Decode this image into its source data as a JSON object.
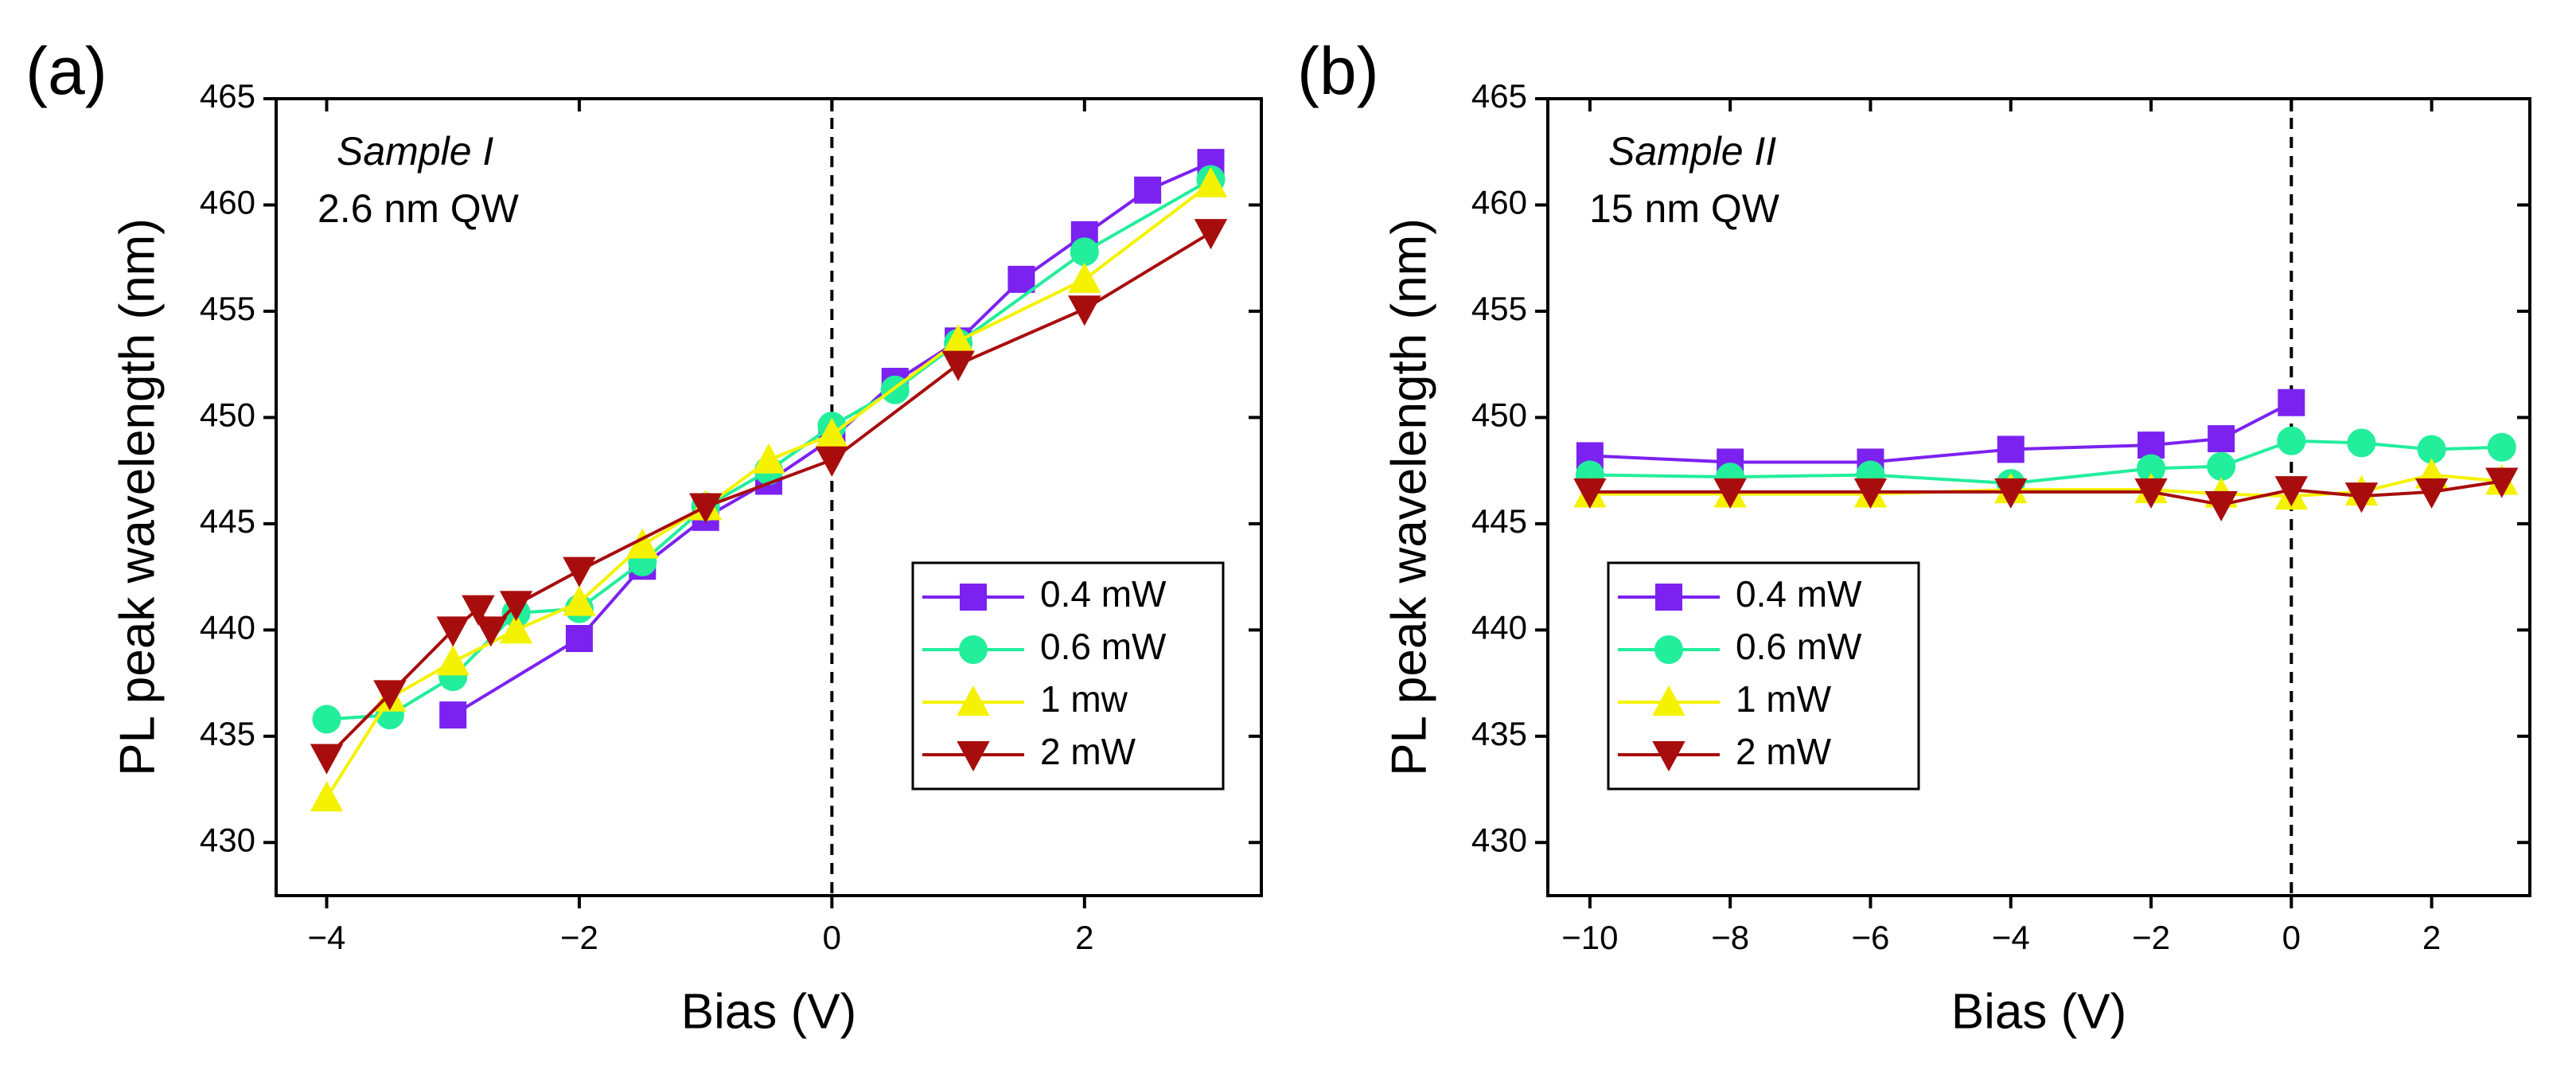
{
  "chart_data": [
    {
      "type": "line",
      "panel_label": "(a)",
      "annotations": [
        "Sample I",
        "2.6 nm QW"
      ],
      "x_label": "Bias (V)",
      "y_label": "PL peak wavelength (nm)",
      "xlim": [
        -4.4,
        3.4
      ],
      "ylim": [
        427.5,
        465
      ],
      "xticks": [
        {
          "value": -4,
          "label": "−4"
        },
        {
          "value": -2,
          "label": "−2"
        },
        0,
        2
      ],
      "yticks": [
        430,
        435,
        440,
        445,
        450,
        455,
        460,
        465
      ],
      "vline": 0,
      "legend": "lower right",
      "series": [
        {
          "name": "0.4 mW",
          "color": "#7b22f0",
          "marker": "square",
          "x": [
            -3,
            -2,
            -1.5,
            -1,
            -0.5,
            0,
            0.5,
            1,
            1.5,
            2,
            2.5,
            3
          ],
          "values": [
            436,
            439.6,
            443,
            445.3,
            447,
            449,
            451.7,
            453.6,
            456.5,
            458.6,
            460.7,
            462
          ]
        },
        {
          "name": "0.6 mW",
          "color": "#22ee9c",
          "marker": "circle",
          "x": [
            -4,
            -3.5,
            -3,
            -2.5,
            -2,
            -1.5,
            -1,
            -0.5,
            0,
            0.5,
            1,
            2,
            3
          ],
          "values": [
            435.8,
            436,
            437.8,
            440.8,
            441,
            443.2,
            445.8,
            447.5,
            449.6,
            451.3,
            453.5,
            457.8,
            461.2
          ]
        },
        {
          "name": "1 mw",
          "color": "#f5f200",
          "marker": "triangle-up",
          "x": [
            -4,
            -3.5,
            -3,
            -2.5,
            -2,
            -1.5,
            -1,
            -0.5,
            0,
            1,
            2,
            3
          ],
          "values": [
            432.1,
            436.8,
            438.5,
            440,
            441.3,
            444,
            445.8,
            448,
            449.2,
            453.6,
            456.5,
            461
          ]
        },
        {
          "name": "2 mW",
          "color": "#a80d0d",
          "marker": "triangle-down",
          "x": [
            -4,
            -3.5,
            -3,
            -2.8,
            -2.7,
            -2.5,
            -2,
            -1,
            0,
            1,
            2,
            3
          ],
          "values": [
            434,
            437,
            440,
            441,
            440,
            441.2,
            442.8,
            445.8,
            448,
            452.5,
            455.1,
            458.7
          ]
        }
      ]
    },
    {
      "type": "line",
      "panel_label": "(b)",
      "annotations": [
        "Sample II",
        "15 nm QW"
      ],
      "x_label": "Bias (V)",
      "y_label": "PL peak wavelength (nm)",
      "xlim": [
        -10.6,
        3.4
      ],
      "ylim": [
        427.5,
        465
      ],
      "xticks": [
        {
          "value": -10,
          "label": "−10"
        },
        {
          "value": -8,
          "label": "−8"
        },
        {
          "value": -6,
          "label": "−6"
        },
        {
          "value": -4,
          "label": "−4"
        },
        {
          "value": -2,
          "label": "−2"
        },
        0,
        2
      ],
      "yticks": [
        430,
        435,
        440,
        445,
        450,
        455,
        460,
        465
      ],
      "vline": 0,
      "legend": "lower left",
      "series": [
        {
          "name": "0.4 mW",
          "color": "#7b22f0",
          "marker": "square",
          "x": [
            -10,
            -8,
            -6,
            -4,
            -2,
            -1,
            0
          ],
          "values": [
            448.2,
            447.9,
            447.9,
            448.5,
            448.7,
            449,
            450.7
          ]
        },
        {
          "name": "0.6 mW",
          "color": "#22ee9c",
          "marker": "circle",
          "x": [
            -10,
            -8,
            -6,
            -4,
            -2,
            -1,
            0,
            1,
            2,
            3
          ],
          "values": [
            447.3,
            447.2,
            447.3,
            446.9,
            447.6,
            447.7,
            448.9,
            448.8,
            448.5,
            448.6
          ]
        },
        {
          "name": "1 mW",
          "color": "#f5f200",
          "marker": "triangle-up",
          "x": [
            -10,
            -8,
            -6,
            -4,
            -2,
            -1,
            0,
            1,
            2,
            3
          ],
          "values": [
            446.4,
            446.4,
            446.4,
            446.6,
            446.6,
            446.4,
            446.3,
            446.5,
            447.3,
            447
          ]
        },
        {
          "name": "2 mW",
          "color": "#a80d0d",
          "marker": "triangle-down",
          "x": [
            -10,
            -8,
            -6,
            -4,
            -2,
            -1,
            0,
            1,
            2,
            3
          ],
          "values": [
            446.5,
            446.5,
            446.5,
            446.5,
            446.5,
            445.9,
            446.6,
            446.3,
            446.5,
            447
          ]
        }
      ]
    }
  ]
}
